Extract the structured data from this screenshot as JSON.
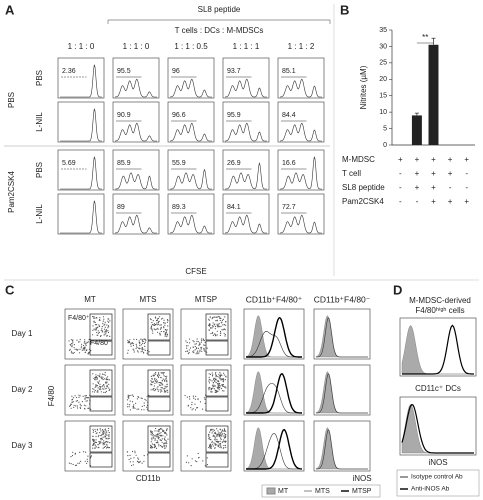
{
  "panel_a": {
    "letter": "A",
    "header": "SL8 peptide",
    "subheader": "T cells : DCs : M-MDSCs",
    "columns": [
      "1 : 1 : 0",
      "1 : 1 : 0",
      "1 : 1 : 0.5",
      "1 : 1 : 1",
      "1 : 1 : 2"
    ],
    "groups": [
      {
        "label": "PBS",
        "rows": [
          {
            "label": "PBS",
            "percents": [
              2.36,
              95.5,
              96,
              93.7,
              85.1
            ]
          },
          {
            "label": "L-NIL",
            "percents": [
              null,
              90.9,
              96.6,
              95.9,
              84.4
            ]
          }
        ]
      },
      {
        "label": "Pam2CSK4",
        "rows": [
          {
            "label": "PBS",
            "percents": [
              5.69,
              85.9,
              55.9,
              26.9,
              16.6
            ]
          },
          {
            "label": "L-NIL",
            "percents": [
              null,
              89,
              89.3,
              84.1,
              72.7
            ]
          }
        ]
      }
    ],
    "x_label": "CFSE"
  },
  "chart_data": {
    "type": "bar",
    "letter": "B",
    "y_label": "Nitrites (µM)",
    "categories": [
      null,
      null,
      null,
      null,
      null
    ],
    "values": [
      0,
      9,
      30.5,
      0,
      0
    ],
    "errors": [
      0,
      0.7,
      2,
      0,
      0
    ],
    "color": "#222222",
    "ylim": [
      0,
      35
    ],
    "yticks": [
      0,
      5,
      10,
      15,
      20,
      25,
      30,
      35
    ],
    "significance": "**",
    "conditions": [
      {
        "name": "M-MDSC",
        "signs": [
          "+",
          "+",
          "+",
          "+",
          "+"
        ]
      },
      {
        "name": "T cell",
        "signs": [
          "-",
          "+",
          "+",
          "+",
          "-"
        ]
      },
      {
        "name": "SL8 peptide",
        "signs": [
          "-",
          "+",
          "+",
          "-",
          "-"
        ]
      },
      {
        "name": "Pam2CSK4",
        "signs": [
          "-",
          "-",
          "+",
          "+",
          "+"
        ]
      }
    ]
  },
  "panel_c": {
    "letter": "C",
    "columns": [
      "MT",
      "MTS",
      "MTSP",
      "CD11b⁺F4/80⁺",
      "CD11b⁺F4/80⁻"
    ],
    "rows": [
      "Day 1",
      "Day 2",
      "Day 3"
    ],
    "gate_labels": [
      "F4/80⁺",
      "F4/80⁻"
    ],
    "y_label": "F4/80",
    "x_label": "CD11b",
    "hist_label": "iNOS",
    "legend": [
      "MT",
      "MTS",
      "MTSP"
    ]
  },
  "panel_d": {
    "letter": "D",
    "title": [
      "M-MDSC-derived",
      "F4/80ʰⁱᵍʰ cells"
    ],
    "second_label": "CD11c⁺ DCs",
    "x_label": "iNOS",
    "legend": [
      "Isotype control Ab",
      "Anti-iNOS Ab"
    ]
  }
}
